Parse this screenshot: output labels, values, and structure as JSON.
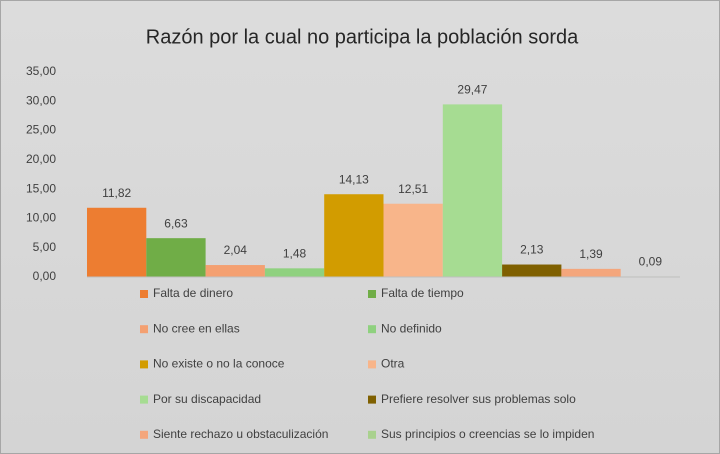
{
  "chart_data": {
    "type": "bar",
    "title": "Razón por la cual no participa la población sorda",
    "ylim": [
      0,
      35
    ],
    "yticks": [
      {
        "value": 0,
        "label": "0,00"
      },
      {
        "value": 5,
        "label": "5,00"
      },
      {
        "value": 10,
        "label": "10,00"
      },
      {
        "value": 15,
        "label": "15,00"
      },
      {
        "value": 20,
        "label": "20,00"
      },
      {
        "value": 25,
        "label": "25,00"
      },
      {
        "value": 30,
        "label": "30,00"
      },
      {
        "value": 35,
        "label": "35,00"
      }
    ],
    "grid": false,
    "legend": "bottom",
    "series": [
      {
        "name": "Falta de dinero",
        "color": "#ed7d31",
        "values": [
          11.82
        ],
        "value_labels": [
          "11,82"
        ]
      },
      {
        "name": "Falta de tiempo",
        "color": "#70ad47",
        "values": [
          6.63
        ],
        "value_labels": [
          "6,63"
        ]
      },
      {
        "name": "No cree en ellas",
        "color": "#f4a071",
        "values": [
          2.04
        ],
        "value_labels": [
          "2,04"
        ]
      },
      {
        "name": "No definido",
        "color": "#8fd17f",
        "values": [
          1.48
        ],
        "value_labels": [
          "1,48"
        ]
      },
      {
        "name": "No existe o no la conoce",
        "color": "#d29c00",
        "values": [
          14.13
        ],
        "value_labels": [
          "14,13"
        ]
      },
      {
        "name": "Otra",
        "color": "#f8b58a",
        "values": [
          12.51
        ],
        "value_labels": [
          "12,51"
        ]
      },
      {
        "name": "Por su discapacidad",
        "color": "#a6dc92",
        "values": [
          29.47
        ],
        "value_labels": [
          "29,47"
        ]
      },
      {
        "name": "Prefiere resolver sus problemas solo",
        "color": "#7f6000",
        "values": [
          2.13
        ],
        "value_labels": [
          "2,13"
        ]
      },
      {
        "name": "Siente rechazo u obstaculización",
        "color": "#f4a67c",
        "values": [
          1.39
        ],
        "value_labels": [
          "1,39"
        ]
      },
      {
        "name": "Sus principios o creencias se lo impiden",
        "color": "#a9d18e",
        "values": [
          0.09
        ],
        "value_labels": [
          "0,09"
        ]
      }
    ]
  }
}
